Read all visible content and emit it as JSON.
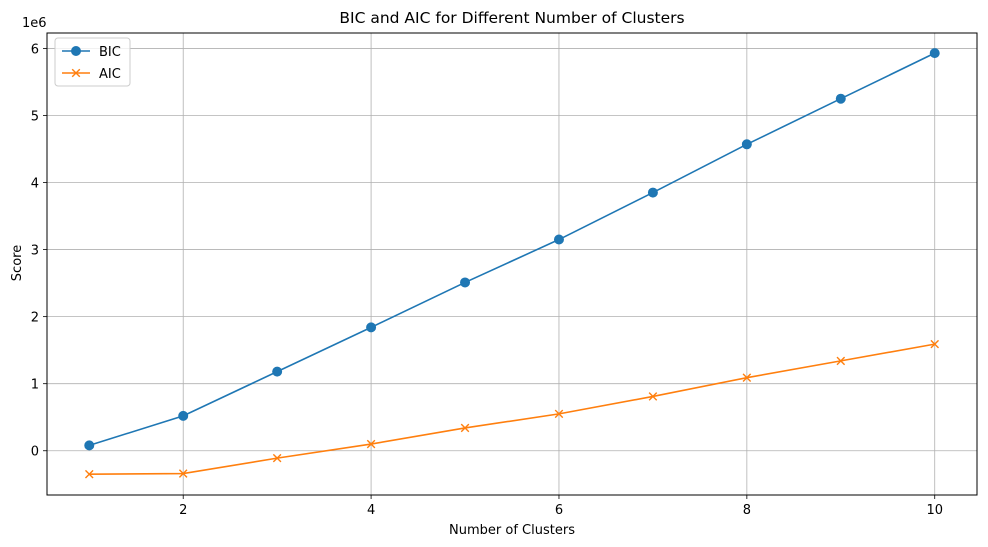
{
  "chart_data": {
    "type": "line",
    "title": "BIC and AIC for Different Number of Clusters",
    "xlabel": "Number of Clusters",
    "ylabel": "Score",
    "y_offset_label": "1e6",
    "xlim": [
      0.55,
      10.45
    ],
    "ylim": [
      -0.66,
      6.23
    ],
    "x_ticks": [
      2,
      4,
      6,
      8,
      10
    ],
    "y_ticks": [
      0,
      1,
      2,
      3,
      4,
      5,
      6
    ],
    "grid": true,
    "legend_position": "upper-left",
    "x": [
      1,
      2,
      3,
      4,
      5,
      6,
      7,
      8,
      9,
      10
    ],
    "series": [
      {
        "name": "BIC",
        "marker": "circle",
        "color": "#1f77b4",
        "values": [
          0.08,
          0.52,
          1.18,
          1.84,
          2.51,
          3.15,
          3.85,
          4.57,
          5.25,
          5.93
        ]
      },
      {
        "name": "AIC",
        "marker": "x",
        "color": "#ff7f0e",
        "values": [
          -0.35,
          -0.34,
          -0.11,
          0.1,
          0.34,
          0.55,
          0.81,
          1.09,
          1.34,
          1.59
        ]
      }
    ]
  }
}
